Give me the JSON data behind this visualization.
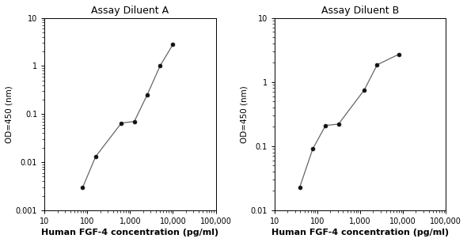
{
  "panel_A": {
    "title": "Assay Diluent A",
    "x_data": [
      78,
      156,
      625,
      1250,
      2500,
      5000,
      10000
    ],
    "y_data": [
      0.003,
      0.013,
      0.065,
      0.07,
      0.25,
      1.0,
      2.8
    ],
    "xlim": [
      10,
      100000
    ],
    "ylim": [
      0.001,
      10
    ],
    "xlabel": "Human FGF-4 concentration (pg/ml)",
    "ylabel": "OD=450 (nm)",
    "xticks": [
      10,
      100,
      1000,
      10000,
      100000
    ],
    "xtick_labels": [
      "10",
      "100",
      "1,000",
      "10,000",
      "100,000"
    ],
    "yticks": [
      0.001,
      0.01,
      0.1,
      1,
      10
    ],
    "ytick_labels": [
      "0.001",
      "0.01",
      "0.1",
      "1",
      "10"
    ]
  },
  "panel_B": {
    "title": "Assay Diluent B",
    "x_data": [
      39,
      78,
      156,
      312,
      1250,
      2500,
      8000
    ],
    "y_data": [
      0.023,
      0.09,
      0.21,
      0.22,
      0.75,
      1.85,
      2.7
    ],
    "xlim": [
      10,
      100000
    ],
    "ylim": [
      0.01,
      10
    ],
    "xlabel": "Human FGF-4 concentration (pg/ml)",
    "ylabel": "OD=450 (nm)",
    "xticks": [
      10,
      100,
      1000,
      10000,
      100000
    ],
    "xtick_labels": [
      "10",
      "100",
      "1,000",
      "10,000",
      "100,000"
    ],
    "yticks": [
      0.01,
      0.1,
      1,
      10
    ],
    "ytick_labels": [
      "0.01",
      "0.1",
      "1",
      "10"
    ]
  },
  "line_color": "#666666",
  "marker_color": "#111111",
  "bg_color": "#ffffff",
  "title_fontsize": 9,
  "label_fontsize": 7.5,
  "tick_fontsize": 7,
  "xlabel_fontsize": 8,
  "xlabel_fontweight": "bold"
}
